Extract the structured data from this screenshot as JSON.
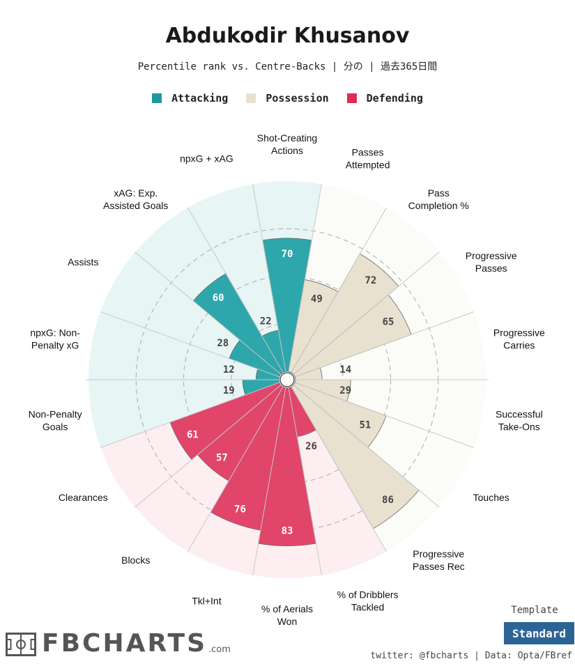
{
  "header": {
    "title": "Abdukodir Khusanov",
    "subtitle": "Percentile rank vs. Centre-Backs | 分の | 過去365日間"
  },
  "legend": [
    {
      "label": "Attacking",
      "color": "#1a9aa0"
    },
    {
      "label": "Possession",
      "color": "#e8e1cf"
    },
    {
      "label": "Defending",
      "color": "#dc2d55"
    }
  ],
  "template": {
    "label": "Template",
    "button_label": "Standard"
  },
  "footer": {
    "credit": "twitter: @fbcharts | Data: Opta/FBref"
  },
  "logo": {
    "text": "FBCHARTS",
    "suffix": ".com"
  },
  "colors": {
    "attacking_fill": "#2ea7ac",
    "attacking_bg": "#e8f5f5",
    "possession_fill": "#e8e1cf",
    "possession_bg": "#fbfbf8",
    "defending_fill": "#e2456a",
    "defending_bg": "#fdeef1"
  },
  "chart_data": {
    "type": "radar-bar",
    "title": "Abdukodir Khusanov",
    "subtitle": "Percentile rank vs. Centre-Backs | 分の | 過去365日間",
    "range": [
      0,
      100
    ],
    "grid": "dashed rings at 25, 50, 75",
    "categories": [
      {
        "label": "Shot-Creating\nActions",
        "value": 70,
        "group": "Attacking"
      },
      {
        "label": "Passes\nAttempted",
        "value": 49,
        "group": "Possession"
      },
      {
        "label": "Pass\nCompletion %",
        "value": 72,
        "group": "Possession"
      },
      {
        "label": "Progressive\nPasses",
        "value": 65,
        "group": "Possession"
      },
      {
        "label": "Progressive\nCarries",
        "value": 14,
        "group": "Possession"
      },
      {
        "label": "Successful\nTake-Ons",
        "value": 29,
        "group": "Possession"
      },
      {
        "label": "Touches",
        "value": 51,
        "group": "Possession"
      },
      {
        "label": "Progressive\nPasses Rec",
        "value": 86,
        "group": "Possession"
      },
      {
        "label": "% of Dribblers\nTackled",
        "value": 26,
        "group": "Defending"
      },
      {
        "label": "% of Aerials\nWon",
        "value": 83,
        "group": "Defending"
      },
      {
        "label": "Tkl+Int",
        "value": 76,
        "group": "Defending"
      },
      {
        "label": "Blocks",
        "value": 57,
        "group": "Defending"
      },
      {
        "label": "Clearances",
        "value": 61,
        "group": "Defending"
      },
      {
        "label": "Non-Penalty\nGoals",
        "value": 19,
        "group": "Attacking"
      },
      {
        "label": "npxG: Non-\nPenalty xG",
        "value": 12,
        "group": "Attacking"
      },
      {
        "label": "Assists",
        "value": 28,
        "group": "Attacking"
      },
      {
        "label": "xAG: Exp.\nAssisted Goals",
        "value": 60,
        "group": "Attacking"
      },
      {
        "label": "npxG + xAG",
        "value": 22,
        "group": "Attacking"
      }
    ]
  }
}
